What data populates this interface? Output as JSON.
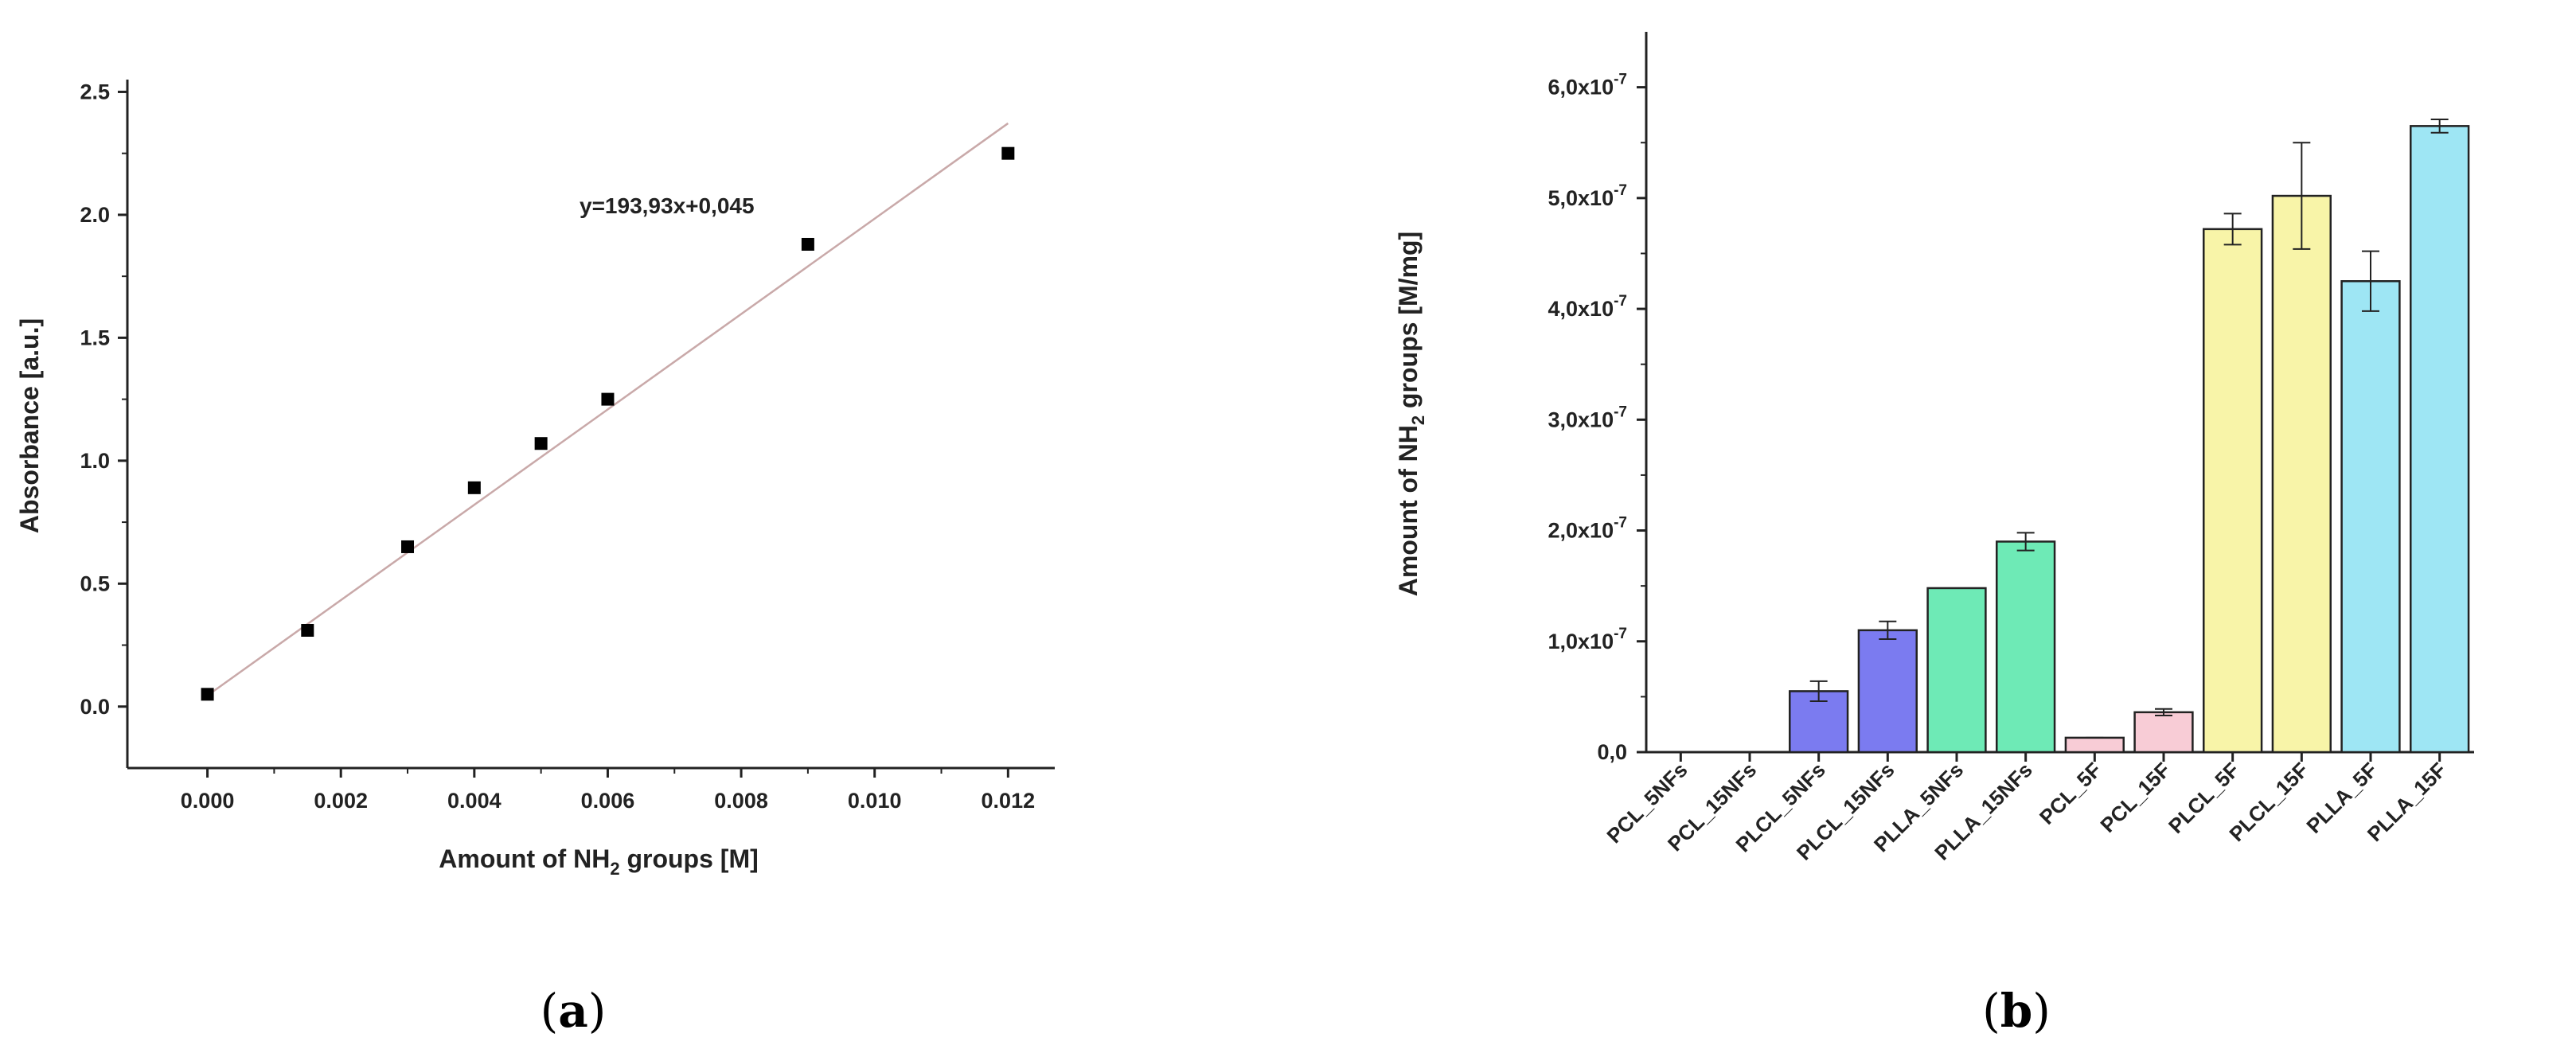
{
  "chart_data": [
    {
      "type": "scatter",
      "panel_label_prefix": "(",
      "panel_label_letter": "a",
      "panel_label_suffix": ")",
      "xlabel_pre": "Amount of NH",
      "xlabel_sub": "2",
      "xlabel_post": " groups [M]",
      "ylabel": "Absorbance [a.u.]",
      "xlim": [
        -0.0012,
        0.0127
      ],
      "ylim": [
        -0.25,
        2.55
      ],
      "xticks": [
        0.0,
        0.002,
        0.004,
        0.006,
        0.008,
        0.01,
        0.012
      ],
      "xtick_labels": [
        "0.000",
        "0.002",
        "0.004",
        "0.006",
        "0.008",
        "0.010",
        "0.012"
      ],
      "yticks": [
        0.0,
        0.5,
        1.0,
        1.5,
        2.0,
        2.5
      ],
      "ytick_labels": [
        "0.0",
        "0.5",
        "1.0",
        "1.5",
        "2.0",
        "2.5"
      ],
      "points": [
        {
          "x": 0.0,
          "y": 0.05
        },
        {
          "x": 0.0015,
          "y": 0.31
        },
        {
          "x": 0.003,
          "y": 0.65
        },
        {
          "x": 0.004,
          "y": 0.89
        },
        {
          "x": 0.005,
          "y": 1.07
        },
        {
          "x": 0.006,
          "y": 1.25
        },
        {
          "x": 0.009,
          "y": 1.88
        },
        {
          "x": 0.012,
          "y": 2.25
        }
      ],
      "fit": {
        "slope": 193.93,
        "intercept": 0.045,
        "x_range": [
          0.0,
          0.012
        ],
        "color": "#c9a9a9"
      },
      "annotation": "y=193,93x+0,045",
      "marker_color": "#000000"
    },
    {
      "type": "bar",
      "panel_label_prefix": "(",
      "panel_label_letter": "b",
      "panel_label_suffix": ")",
      "ylabel_pre": "Amount of NH",
      "ylabel_sub": "2",
      "ylabel_post": " groups [M/mg]",
      "ylim": [
        0,
        6.5
      ],
      "y_unit_exponent": "-7",
      "yticks": [
        0,
        1,
        2,
        3,
        4,
        5,
        6
      ],
      "ytick_labels": [
        "0,0",
        "1,0x10",
        "2,0x10",
        "3,0x10",
        "4,0x10",
        "5,0x10",
        "6,0x10"
      ],
      "categories": [
        "PCL_5NFs",
        "PCL_15NFs",
        "PLCL_5NFs",
        "PLCL_15NFs",
        "PLLA_5NFs",
        "PLLA_15NFs",
        "PCL_5F",
        "PCL_15F",
        "PLCL_5F",
        "PLCL_15F",
        "PLLA_5F",
        "PLLA_15F"
      ],
      "values": [
        0.0,
        0.0,
        0.55,
        1.1,
        1.48,
        1.9,
        0.13,
        0.36,
        4.72,
        5.02,
        4.25,
        5.65
      ],
      "errors": [
        0.0,
        0.0,
        0.09,
        0.08,
        0.0,
        0.08,
        0.0,
        0.03,
        0.14,
        0.48,
        0.27,
        0.06
      ],
      "bar_colors": [
        "#7b7bf0",
        "#7b7bf0",
        "#7b7bf0",
        "#7b7bf0",
        "#6eeab6",
        "#6eeab6",
        "#f8ccd6",
        "#f8ccd6",
        "#f8f4a8",
        "#f8f4a8",
        "#9ee6f4",
        "#9ee6f4"
      ]
    }
  ]
}
